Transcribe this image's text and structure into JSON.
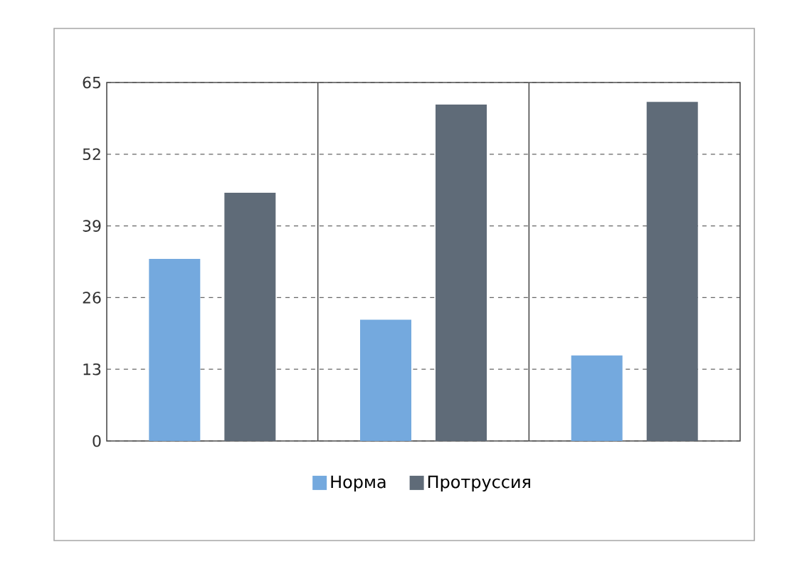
{
  "chart_data": {
    "type": "bar",
    "categories": [
      null,
      null,
      null
    ],
    "series": [
      {
        "name": "Норма",
        "color": "#74a9de",
        "values": [
          33,
          22,
          15.5
        ]
      },
      {
        "name": "Протруссия",
        "color": "#5f6b78",
        "values": [
          45,
          61,
          61.5
        ]
      }
    ],
    "ylim": [
      0,
      65
    ],
    "yticks": [
      0,
      13,
      26,
      39,
      52,
      65
    ],
    "grid": "y",
    "legend": "bottom"
  }
}
